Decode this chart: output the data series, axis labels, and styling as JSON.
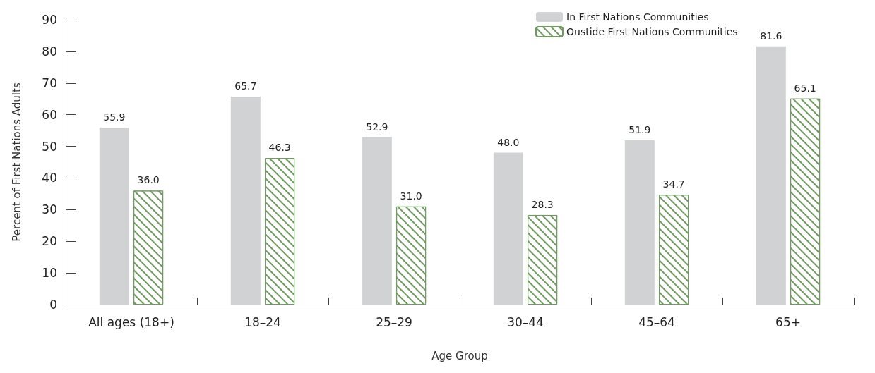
{
  "chart_data": {
    "type": "bar",
    "xlabel": "Age Group",
    "ylabel": "Percent of First Nations Adults",
    "categories": [
      "All ages (18+)",
      "18–24",
      "25–29",
      "30–44",
      "45–64",
      "65+"
    ],
    "series": [
      {
        "name": "In First Nations Communities",
        "color": "#d1d2d4",
        "values": [
          55.9,
          65.7,
          52.9,
          48.0,
          51.9,
          81.6
        ],
        "value_labels": [
          "55.9",
          "65.7",
          "52.9",
          "48.0",
          "51.9",
          "81.6"
        ]
      },
      {
        "name": "Oustide First Nations Communities",
        "color": "#6e9a5e",
        "values": [
          36.0,
          46.3,
          31.0,
          28.3,
          34.7,
          65.1
        ],
        "value_labels": [
          "36.0",
          "46.3",
          "31.0",
          "28.3",
          "34.7",
          "65.1"
        ]
      }
    ],
    "ylim": [
      0,
      90
    ],
    "yticks": [
      0,
      10,
      20,
      30,
      40,
      50,
      60,
      70,
      80,
      90
    ],
    "grid": false,
    "legend": "top right"
  }
}
